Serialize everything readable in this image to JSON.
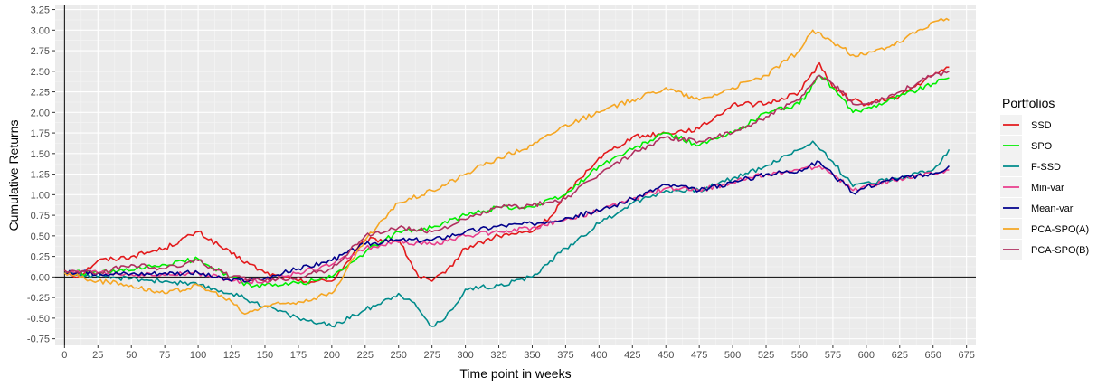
{
  "chart_data": {
    "type": "line",
    "title": "",
    "xlabel": "Time point in weeks",
    "ylabel": "Cumulative Returns",
    "xlim": [
      -7,
      682
    ],
    "ylim": [
      -0.82,
      3.3
    ],
    "xticks": [
      0,
      25,
      50,
      75,
      100,
      125,
      150,
      175,
      200,
      225,
      250,
      275,
      300,
      325,
      350,
      375,
      400,
      425,
      450,
      475,
      500,
      525,
      550,
      575,
      600,
      625,
      650,
      675
    ],
    "yticks": [
      "-0.75",
      "-0.50",
      "-0.25",
      "0.00",
      "0.25",
      "0.50",
      "0.75",
      "1.00",
      "1.25",
      "1.50",
      "1.75",
      "2.00",
      "2.25",
      "2.50",
      "2.75",
      "3.00",
      "3.25"
    ],
    "grid": true,
    "reference_lines": {
      "vertical_x": 0,
      "horizontal_y": 0
    },
    "legend": {
      "title": "Portfolios",
      "position": "right"
    },
    "series": [
      {
        "name": "SSD",
        "color": "#e31a1c",
        "points": [
          [
            0,
            0.08
          ],
          [
            10,
            0.0
          ],
          [
            25,
            0.2
          ],
          [
            50,
            0.25
          ],
          [
            75,
            0.35
          ],
          [
            100,
            0.55
          ],
          [
            125,
            0.28
          ],
          [
            150,
            0.05
          ],
          [
            175,
            -0.05
          ],
          [
            200,
            -0.05
          ],
          [
            225,
            0.45
          ],
          [
            250,
            0.45
          ],
          [
            265,
            0.0
          ],
          [
            275,
            -0.05
          ],
          [
            285,
            0.05
          ],
          [
            300,
            0.35
          ],
          [
            325,
            0.5
          ],
          [
            350,
            0.55
          ],
          [
            365,
            0.75
          ],
          [
            375,
            1.0
          ],
          [
            400,
            1.45
          ],
          [
            425,
            1.7
          ],
          [
            450,
            1.75
          ],
          [
            475,
            1.8
          ],
          [
            500,
            2.1
          ],
          [
            525,
            2.1
          ],
          [
            550,
            2.25
          ],
          [
            565,
            2.6
          ],
          [
            575,
            2.3
          ],
          [
            590,
            2.15
          ],
          [
            600,
            2.1
          ],
          [
            625,
            2.2
          ],
          [
            650,
            2.45
          ],
          [
            662,
            2.55
          ]
        ]
      },
      {
        "name": "SPO",
        "color": "#00ee00",
        "points": [
          [
            0,
            0.05
          ],
          [
            25,
            0.05
          ],
          [
            50,
            0.08
          ],
          [
            75,
            0.15
          ],
          [
            100,
            0.22
          ],
          [
            125,
            0.0
          ],
          [
            140,
            -0.12
          ],
          [
            150,
            -0.1
          ],
          [
            175,
            -0.08
          ],
          [
            200,
            0.0
          ],
          [
            225,
            0.3
          ],
          [
            250,
            0.55
          ],
          [
            275,
            0.6
          ],
          [
            300,
            0.75
          ],
          [
            325,
            0.85
          ],
          [
            350,
            0.85
          ],
          [
            375,
            1.0
          ],
          [
            400,
            1.35
          ],
          [
            425,
            1.55
          ],
          [
            450,
            1.75
          ],
          [
            475,
            1.6
          ],
          [
            500,
            1.75
          ],
          [
            525,
            2.0
          ],
          [
            550,
            2.1
          ],
          [
            565,
            2.45
          ],
          [
            575,
            2.3
          ],
          [
            590,
            2.0
          ],
          [
            600,
            2.05
          ],
          [
            625,
            2.2
          ],
          [
            650,
            2.35
          ],
          [
            662,
            2.42
          ]
        ]
      },
      {
        "name": "F-SSD",
        "color": "#008b8b",
        "points": [
          [
            0,
            0.05
          ],
          [
            25,
            0.0
          ],
          [
            50,
            -0.02
          ],
          [
            75,
            -0.05
          ],
          [
            100,
            -0.1
          ],
          [
            125,
            -0.2
          ],
          [
            150,
            -0.35
          ],
          [
            175,
            -0.5
          ],
          [
            200,
            -0.6
          ],
          [
            225,
            -0.4
          ],
          [
            250,
            -0.2
          ],
          [
            260,
            -0.3
          ],
          [
            275,
            -0.6
          ],
          [
            285,
            -0.5
          ],
          [
            300,
            -0.15
          ],
          [
            325,
            -0.1
          ],
          [
            350,
            0.0
          ],
          [
            375,
            0.35
          ],
          [
            400,
            0.65
          ],
          [
            425,
            0.9
          ],
          [
            450,
            1.05
          ],
          [
            475,
            1.05
          ],
          [
            500,
            1.2
          ],
          [
            525,
            1.35
          ],
          [
            550,
            1.55
          ],
          [
            560,
            1.65
          ],
          [
            575,
            1.4
          ],
          [
            590,
            1.1
          ],
          [
            600,
            1.15
          ],
          [
            625,
            1.2
          ],
          [
            650,
            1.3
          ],
          [
            662,
            1.55
          ]
        ]
      },
      {
        "name": "Min-var",
        "color": "#e83e8c",
        "points": [
          [
            0,
            0.05
          ],
          [
            25,
            0.05
          ],
          [
            50,
            0.03
          ],
          [
            75,
            0.02
          ],
          [
            100,
            0.05
          ],
          [
            125,
            -0.05
          ],
          [
            150,
            -0.05
          ],
          [
            175,
            0.05
          ],
          [
            200,
            0.15
          ],
          [
            225,
            0.35
          ],
          [
            250,
            0.42
          ],
          [
            275,
            0.4
          ],
          [
            300,
            0.5
          ],
          [
            325,
            0.55
          ],
          [
            350,
            0.6
          ],
          [
            375,
            0.7
          ],
          [
            400,
            0.8
          ],
          [
            425,
            0.95
          ],
          [
            450,
            1.08
          ],
          [
            475,
            1.05
          ],
          [
            500,
            1.15
          ],
          [
            525,
            1.25
          ],
          [
            550,
            1.3
          ],
          [
            565,
            1.35
          ],
          [
            575,
            1.25
          ],
          [
            590,
            1.05
          ],
          [
            600,
            1.1
          ],
          [
            625,
            1.2
          ],
          [
            650,
            1.25
          ],
          [
            662,
            1.3
          ]
        ]
      },
      {
        "name": "Mean-var",
        "color": "#00008b",
        "points": [
          [
            0,
            0.05
          ],
          [
            25,
            0.05
          ],
          [
            50,
            0.04
          ],
          [
            75,
            0.05
          ],
          [
            100,
            0.05
          ],
          [
            125,
            -0.05
          ],
          [
            150,
            -0.02
          ],
          [
            175,
            0.1
          ],
          [
            200,
            0.2
          ],
          [
            225,
            0.4
          ],
          [
            250,
            0.45
          ],
          [
            275,
            0.45
          ],
          [
            300,
            0.55
          ],
          [
            325,
            0.62
          ],
          [
            350,
            0.65
          ],
          [
            375,
            0.72
          ],
          [
            400,
            0.8
          ],
          [
            425,
            0.95
          ],
          [
            450,
            1.12
          ],
          [
            475,
            1.05
          ],
          [
            500,
            1.15
          ],
          [
            525,
            1.25
          ],
          [
            550,
            1.3
          ],
          [
            565,
            1.4
          ],
          [
            575,
            1.25
          ],
          [
            590,
            1.02
          ],
          [
            600,
            1.1
          ],
          [
            625,
            1.2
          ],
          [
            650,
            1.25
          ],
          [
            662,
            1.35
          ]
        ]
      },
      {
        "name": "PCA-SPO(A)",
        "color": "#f5a623",
        "points": [
          [
            0,
            0.05
          ],
          [
            25,
            -0.05
          ],
          [
            50,
            -0.1
          ],
          [
            75,
            -0.2
          ],
          [
            100,
            -0.1
          ],
          [
            125,
            -0.3
          ],
          [
            135,
            -0.45
          ],
          [
            150,
            -0.35
          ],
          [
            175,
            -0.3
          ],
          [
            200,
            -0.2
          ],
          [
            225,
            0.45
          ],
          [
            250,
            0.9
          ],
          [
            275,
            1.05
          ],
          [
            300,
            1.25
          ],
          [
            325,
            1.45
          ],
          [
            350,
            1.6
          ],
          [
            375,
            1.85
          ],
          [
            400,
            2.0
          ],
          [
            425,
            2.15
          ],
          [
            450,
            2.3
          ],
          [
            475,
            2.15
          ],
          [
            500,
            2.3
          ],
          [
            525,
            2.45
          ],
          [
            550,
            2.75
          ],
          [
            560,
            3.0
          ],
          [
            575,
            2.85
          ],
          [
            590,
            2.7
          ],
          [
            600,
            2.7
          ],
          [
            625,
            2.85
          ],
          [
            650,
            3.1
          ],
          [
            662,
            3.12
          ]
        ]
      },
      {
        "name": "PCA-SPO(B)",
        "color": "#b03060",
        "points": [
          [
            0,
            0.08
          ],
          [
            25,
            0.05
          ],
          [
            50,
            0.15
          ],
          [
            75,
            0.1
          ],
          [
            100,
            0.2
          ],
          [
            125,
            0.0
          ],
          [
            150,
            -0.05
          ],
          [
            175,
            0.0
          ],
          [
            200,
            0.1
          ],
          [
            225,
            0.5
          ],
          [
            250,
            0.6
          ],
          [
            275,
            0.55
          ],
          [
            300,
            0.7
          ],
          [
            325,
            0.85
          ],
          [
            350,
            0.87
          ],
          [
            375,
            0.95
          ],
          [
            400,
            1.25
          ],
          [
            425,
            1.5
          ],
          [
            450,
            1.7
          ],
          [
            475,
            1.65
          ],
          [
            500,
            1.75
          ],
          [
            525,
            1.95
          ],
          [
            550,
            2.15
          ],
          [
            565,
            2.45
          ],
          [
            575,
            2.35
          ],
          [
            590,
            2.1
          ],
          [
            600,
            2.1
          ],
          [
            625,
            2.25
          ],
          [
            650,
            2.45
          ],
          [
            662,
            2.5
          ]
        ]
      }
    ]
  }
}
